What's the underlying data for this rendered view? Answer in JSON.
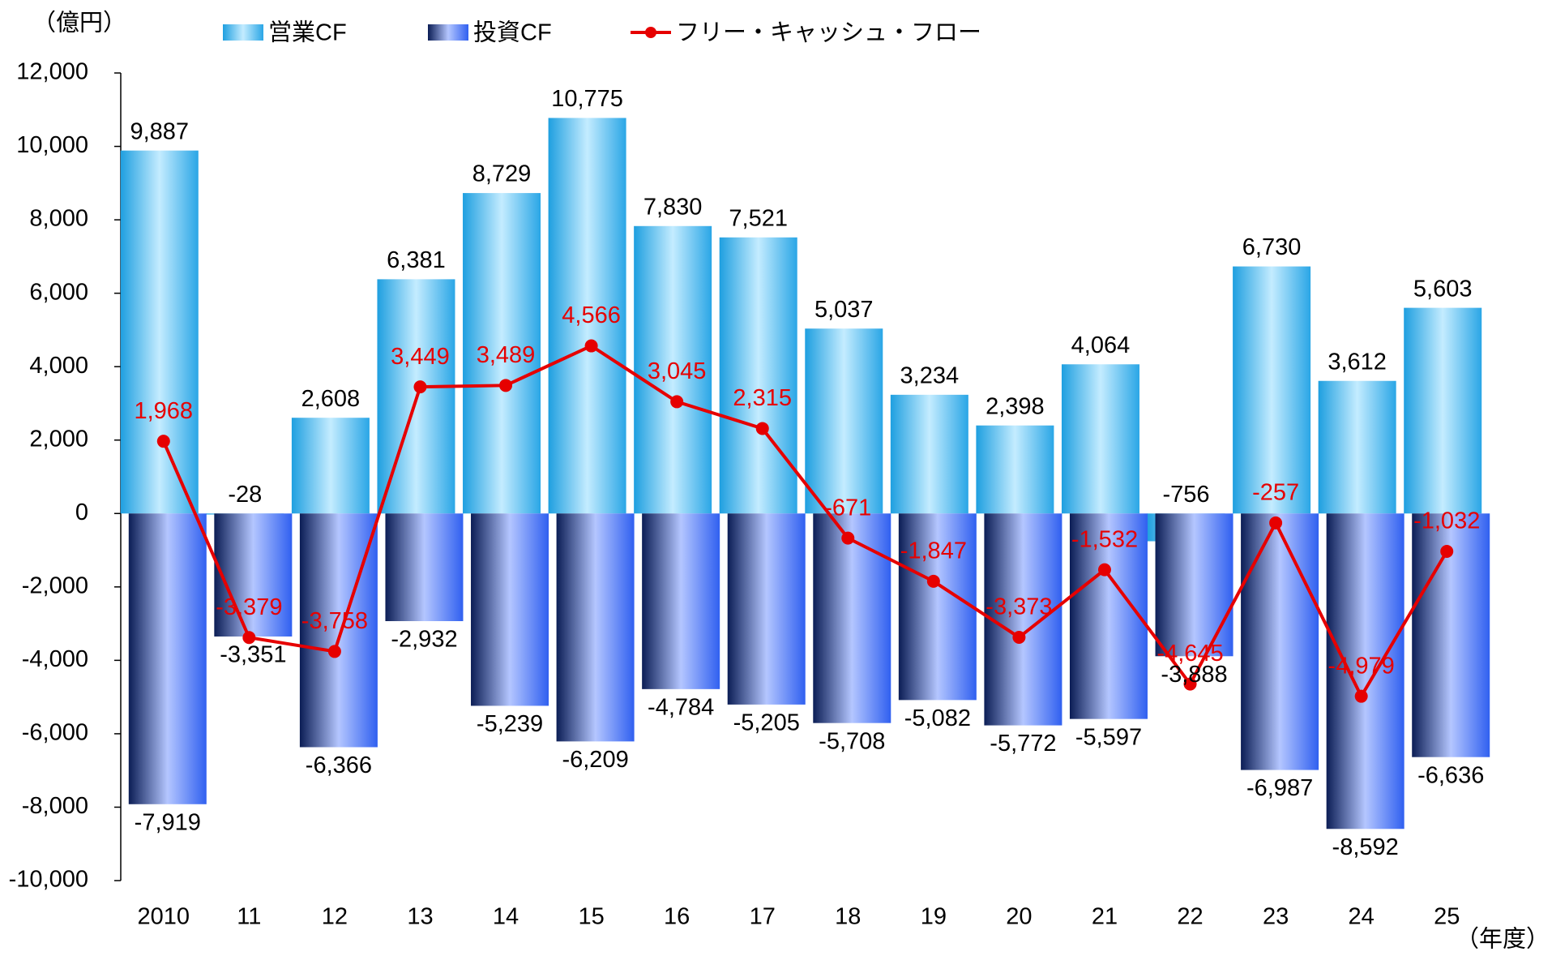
{
  "chart_data": {
    "type": "bar_line",
    "unit_label": "（億円）",
    "x_unit_label": "（年度）",
    "categories": [
      "2010",
      "11",
      "12",
      "13",
      "14",
      "15",
      "16",
      "17",
      "18",
      "19",
      "20",
      "21",
      "22",
      "23",
      "24",
      "25"
    ],
    "series": [
      {
        "name": "営業CF",
        "type": "bar",
        "color": "#4db8ee",
        "values": [
          9887,
          -28,
          2608,
          6381,
          8729,
          10775,
          7830,
          7521,
          5037,
          3234,
          2398,
          4064,
          -756,
          6730,
          3612,
          5603
        ],
        "value_labels": [
          "9,887",
          "-28",
          "2,608",
          "6,381",
          "8,729",
          "10,775",
          "7,830",
          "7,521",
          "5,037",
          "3,234",
          "2,398",
          "4,064",
          "-756",
          "6,730",
          "3,612",
          "5,603"
        ]
      },
      {
        "name": "投資CF",
        "type": "bar",
        "color": "#2a4fb8",
        "values": [
          -7919,
          -3351,
          -6366,
          -2932,
          -5239,
          -6209,
          -4784,
          -5205,
          -5708,
          -5082,
          -5772,
          -5597,
          -3888,
          -6987,
          -8592,
          -6636
        ],
        "value_labels": [
          "-7,919",
          "-3,351",
          "-6,366",
          "-2,932",
          "-5,239",
          "-6,209",
          "-4,784",
          "-5,205",
          "-5,708",
          "-5,082",
          "-5,772",
          "-5,597",
          "-3,888",
          "-6,987",
          "-8,592",
          "-6,636"
        ]
      },
      {
        "name": "フリー・キャッシュ・フロー",
        "type": "line",
        "color": "#e60000",
        "values": [
          1968,
          -3379,
          -3758,
          3449,
          3489,
          4566,
          3045,
          2315,
          -671,
          -1847,
          -3373,
          -1532,
          -4645,
          -257,
          -4979,
          -1032
        ],
        "value_labels": [
          "1,968",
          "-3,379",
          "-3,758",
          "3,449",
          "3,489",
          "4,566",
          "3,045",
          "2,315",
          "-671",
          "-1,847",
          "-3,373",
          "-1,532",
          "-4,645",
          "-257",
          "-4,979",
          "-1,032"
        ]
      }
    ],
    "ylim": [
      -10000,
      12000
    ],
    "yticks": [
      {
        "value": -10000,
        "label": "-10,000"
      },
      {
        "value": -8000,
        "label": "-8,000"
      },
      {
        "value": -6000,
        "label": "-6,000"
      },
      {
        "value": -4000,
        "label": "-4,000"
      },
      {
        "value": -2000,
        "label": "-2,000"
      },
      0,
      {
        "value": 2000,
        "label": "2,000"
      },
      {
        "value": 4000,
        "label": "4,000"
      },
      {
        "value": 6000,
        "label": "6,000"
      },
      {
        "value": 8000,
        "label": "8,000"
      },
      {
        "value": 10000,
        "label": "10,000"
      },
      {
        "value": 12000,
        "label": "12,000"
      }
    ]
  }
}
